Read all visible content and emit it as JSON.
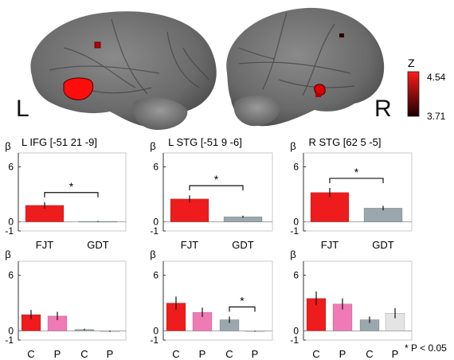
{
  "brain": {
    "left_label": "L",
    "right_label": "R",
    "colorbar": {
      "title": "Z",
      "max_label": "4.54",
      "min_label": "3.71",
      "color_top": "#ff1a1a",
      "color_bottom": "#1a0000"
    }
  },
  "significance_note": "* P < 0.05",
  "chart_data": [
    {
      "type": "bar",
      "title": "L IFG [-51 21 -9]",
      "ylabel": "β",
      "yticks": [
        "6",
        "0",
        "-1"
      ],
      "ylim": [
        -1,
        7
      ],
      "categories": [
        "FJT",
        "GDT"
      ],
      "values": [
        1.8,
        0.05
      ],
      "errors": [
        0.35,
        0.05
      ],
      "colors": [
        "#ee1c1c",
        "#9aa8ae"
      ],
      "significance": {
        "from": 0,
        "to": 1,
        "label": "*"
      }
    },
    {
      "type": "bar",
      "title": "L STG [-51 9 -6]",
      "ylabel": "β",
      "yticks": [
        "6",
        "0",
        "-1"
      ],
      "ylim": [
        -1,
        7
      ],
      "categories": [
        "FJT",
        "GDT"
      ],
      "values": [
        2.5,
        0.55
      ],
      "errors": [
        0.4,
        0.12
      ],
      "colors": [
        "#ee1c1c",
        "#9aa8ae"
      ],
      "significance": {
        "from": 0,
        "to": 1,
        "label": "*"
      }
    },
    {
      "type": "bar",
      "title": "R STG [62 5 -5]",
      "ylabel": "β",
      "yticks": [
        "6",
        "0",
        "-1"
      ],
      "ylim": [
        -1,
        7
      ],
      "categories": [
        "FJT",
        "GDT"
      ],
      "values": [
        3.2,
        1.5
      ],
      "errors": [
        0.5,
        0.25
      ],
      "colors": [
        "#ee1c1c",
        "#9aa8ae"
      ],
      "significance": {
        "from": 0,
        "to": 1,
        "label": "*"
      }
    },
    {
      "type": "bar",
      "title": "",
      "ylabel": "β",
      "yticks": [
        "6",
        "0",
        "-1"
      ],
      "ylim": [
        -1,
        7
      ],
      "categories": [
        "C",
        "P",
        "C",
        "P"
      ],
      "values": [
        1.75,
        1.6,
        0.15,
        -0.05
      ],
      "errors": [
        0.5,
        0.45,
        0.08,
        0.06
      ],
      "colors": [
        "#ee1c1c",
        "#f07ab5",
        "#9aa8ae",
        "#e4e4e4"
      ],
      "significance": null
    },
    {
      "type": "bar",
      "title": "",
      "ylabel": "β",
      "yticks": [
        "6",
        "0",
        "-1"
      ],
      "ylim": [
        -1,
        7
      ],
      "categories": [
        "C",
        "P",
        "C",
        "P"
      ],
      "values": [
        3.0,
        2.0,
        1.2,
        -0.05
      ],
      "errors": [
        0.7,
        0.5,
        0.35,
        0.04
      ],
      "colors": [
        "#ee1c1c",
        "#f07ab5",
        "#9aa8ae",
        "#e4e4e4"
      ],
      "significance": {
        "from": 2,
        "to": 3,
        "label": "*"
      }
    },
    {
      "type": "bar",
      "title": "",
      "ylabel": "β",
      "yticks": [
        "6",
        "0",
        "-1"
      ],
      "ylim": [
        -1,
        7
      ],
      "categories": [
        "C",
        "P",
        "C",
        "P"
      ],
      "values": [
        3.5,
        2.9,
        1.2,
        1.9
      ],
      "errors": [
        0.75,
        0.6,
        0.35,
        0.55
      ],
      "colors": [
        "#ee1c1c",
        "#f07ab5",
        "#9aa8ae",
        "#e4e4e4"
      ],
      "significance": null
    }
  ]
}
